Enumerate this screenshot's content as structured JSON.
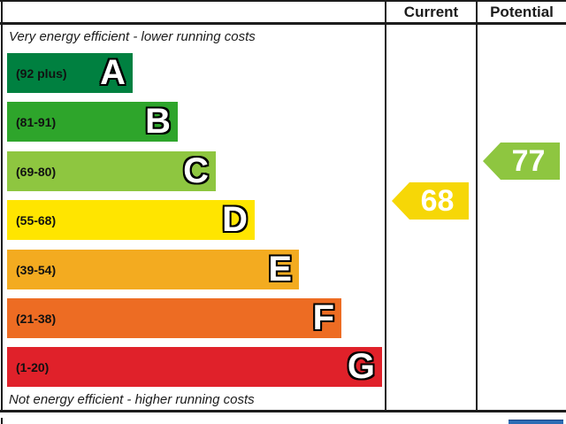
{
  "header": {
    "current_label": "Current",
    "potential_label": "Potential"
  },
  "captions": {
    "top": "Very energy efficient - lower running costs",
    "bottom": "Not energy efficient - higher running costs"
  },
  "chart_data": {
    "type": "bar",
    "orientation": "horizontal",
    "title": "",
    "bands": [
      {
        "letter": "A",
        "range": "(92 plus)",
        "score_min": 92,
        "score_max": 100,
        "color": "#008040",
        "bar_length": 142
      },
      {
        "letter": "B",
        "range": "(81-91)",
        "score_min": 81,
        "score_max": 91,
        "color": "#2ea52b",
        "bar_length": 193
      },
      {
        "letter": "C",
        "range": "(69-80)",
        "score_min": 69,
        "score_max": 80,
        "color": "#8ec640",
        "bar_length": 236
      },
      {
        "letter": "D",
        "range": "(55-68)",
        "score_min": 55,
        "score_max": 68,
        "color": "#ffe500",
        "bar_length": 280
      },
      {
        "letter": "E",
        "range": "(39-54)",
        "score_min": 39,
        "score_max": 54,
        "color": "#f3ab20",
        "bar_length": 330
      },
      {
        "letter": "F",
        "range": "(21-38)",
        "score_min": 21,
        "score_max": 38,
        "color": "#ed6c23",
        "bar_length": 378
      },
      {
        "letter": "G",
        "range": "(1-20)",
        "score_min": 1,
        "score_max": 20,
        "color": "#e0212a",
        "bar_length": 424
      }
    ],
    "current": {
      "label": "Current",
      "value": 68,
      "band": "D",
      "color": "#f6d707"
    },
    "potential": {
      "label": "Potential",
      "value": 77,
      "band": "C",
      "color": "#8ec640"
    }
  },
  "footer": {
    "logo_color": "#2b6cb4"
  }
}
